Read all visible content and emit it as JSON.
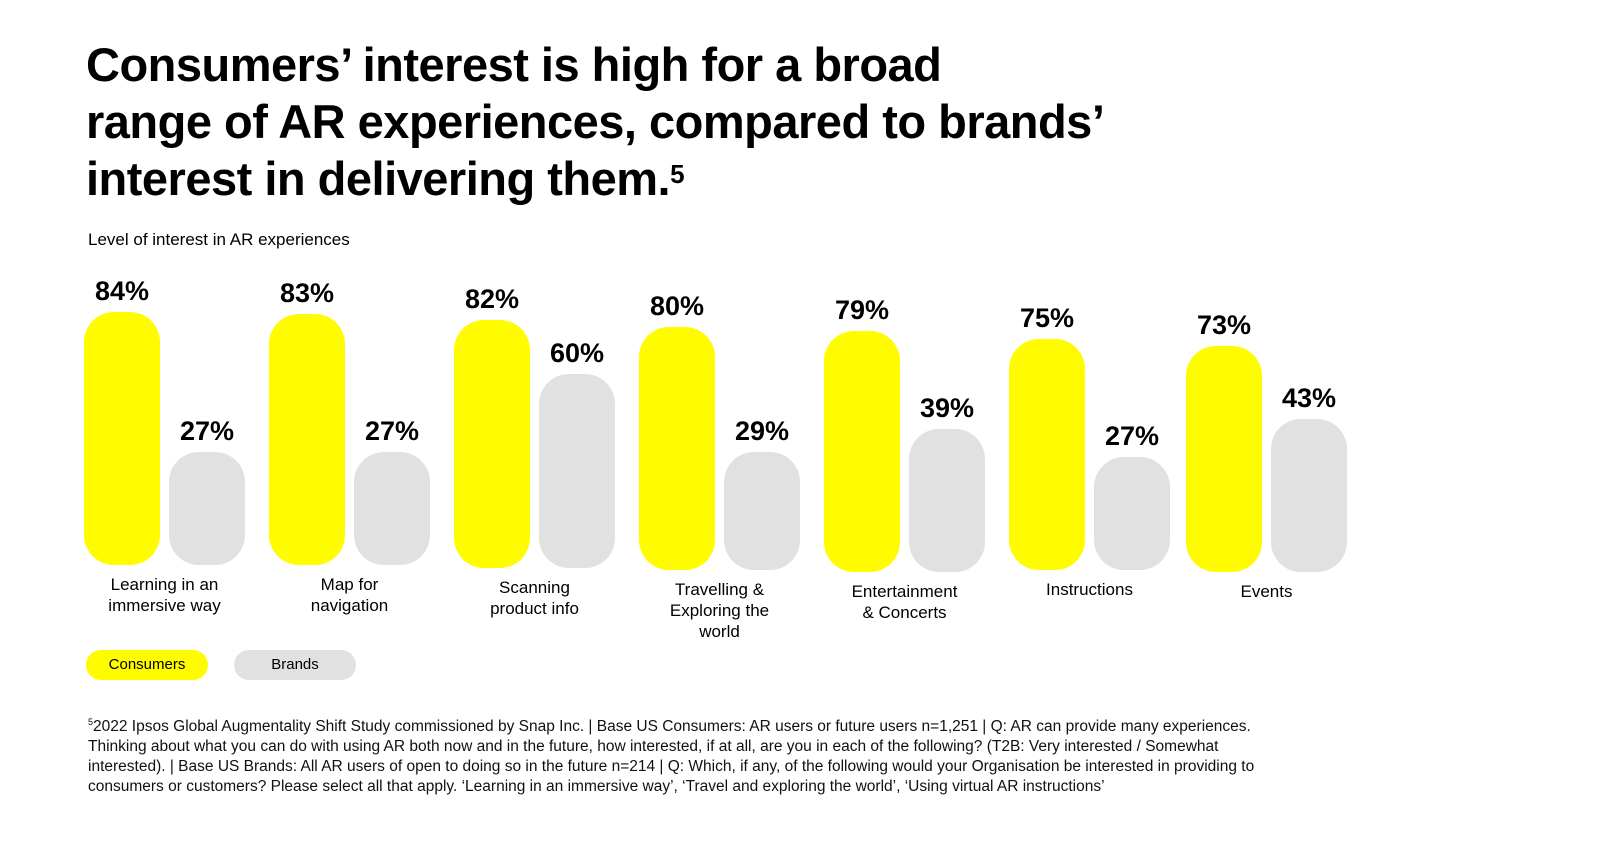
{
  "title": "Consumers’ interest is high for a broad range of AR experiences, compared to brands’ interest in delivering them.",
  "title_lines": [
    "Consumers’ interest is high for a broad",
    "range of AR experiences, compared to brands’",
    "interest in delivering them."
  ],
  "title_footnote_mark": "5",
  "colors": {
    "consumers": "#FFFC00",
    "brands": "#E1E1E1"
  },
  "chart_data": {
    "type": "bar",
    "title": "Level of interest in AR experiences",
    "categories": [
      "Learning in an\nimmersive way",
      "Map for\nnavigation",
      "Scanning\nproduct info",
      "Travelling &\nExploring the\nworld",
      "Entertainment\n& Concerts",
      "Instructions",
      "Events"
    ],
    "series": [
      {
        "name": "Consumers",
        "values": [
          84,
          83,
          82,
          80,
          79,
          75,
          73
        ],
        "labels": [
          "84%",
          "83%",
          "82%",
          "80%",
          "79%",
          "75%",
          "73%"
        ]
      },
      {
        "name": "Brands",
        "values": [
          27,
          27,
          60,
          29,
          39,
          27,
          43
        ],
        "labels": [
          "27%",
          "27%",
          "60%",
          "29%",
          "39%",
          "27%",
          "43%"
        ]
      }
    ],
    "unit": "%",
    "grid": false,
    "legend": "bottom-left"
  },
  "footnote": {
    "mark": "5",
    "lines": [
      "2022 Ipsos Global Augmentality Shift Study commissioned by Snap Inc. | Base US Consumers: AR users or future users n=1,251 | Q: AR can provide many experiences.",
      "Thinking about what you can do with using AR both now and in the future, how interested, if at all, are you in each of the following? (T2B: Very interested / Somewhat",
      "interested). | Base US Brands: All AR users of open to doing so in the future n=214 | Q: Which, if any, of the following would your Organisation be interested in providing to",
      "consumers or customers? Please select all that apply. ‘Learning in an immersive way’, ‘Travel and exploring the world’, ‘Using virtual AR instructions’"
    ]
  }
}
